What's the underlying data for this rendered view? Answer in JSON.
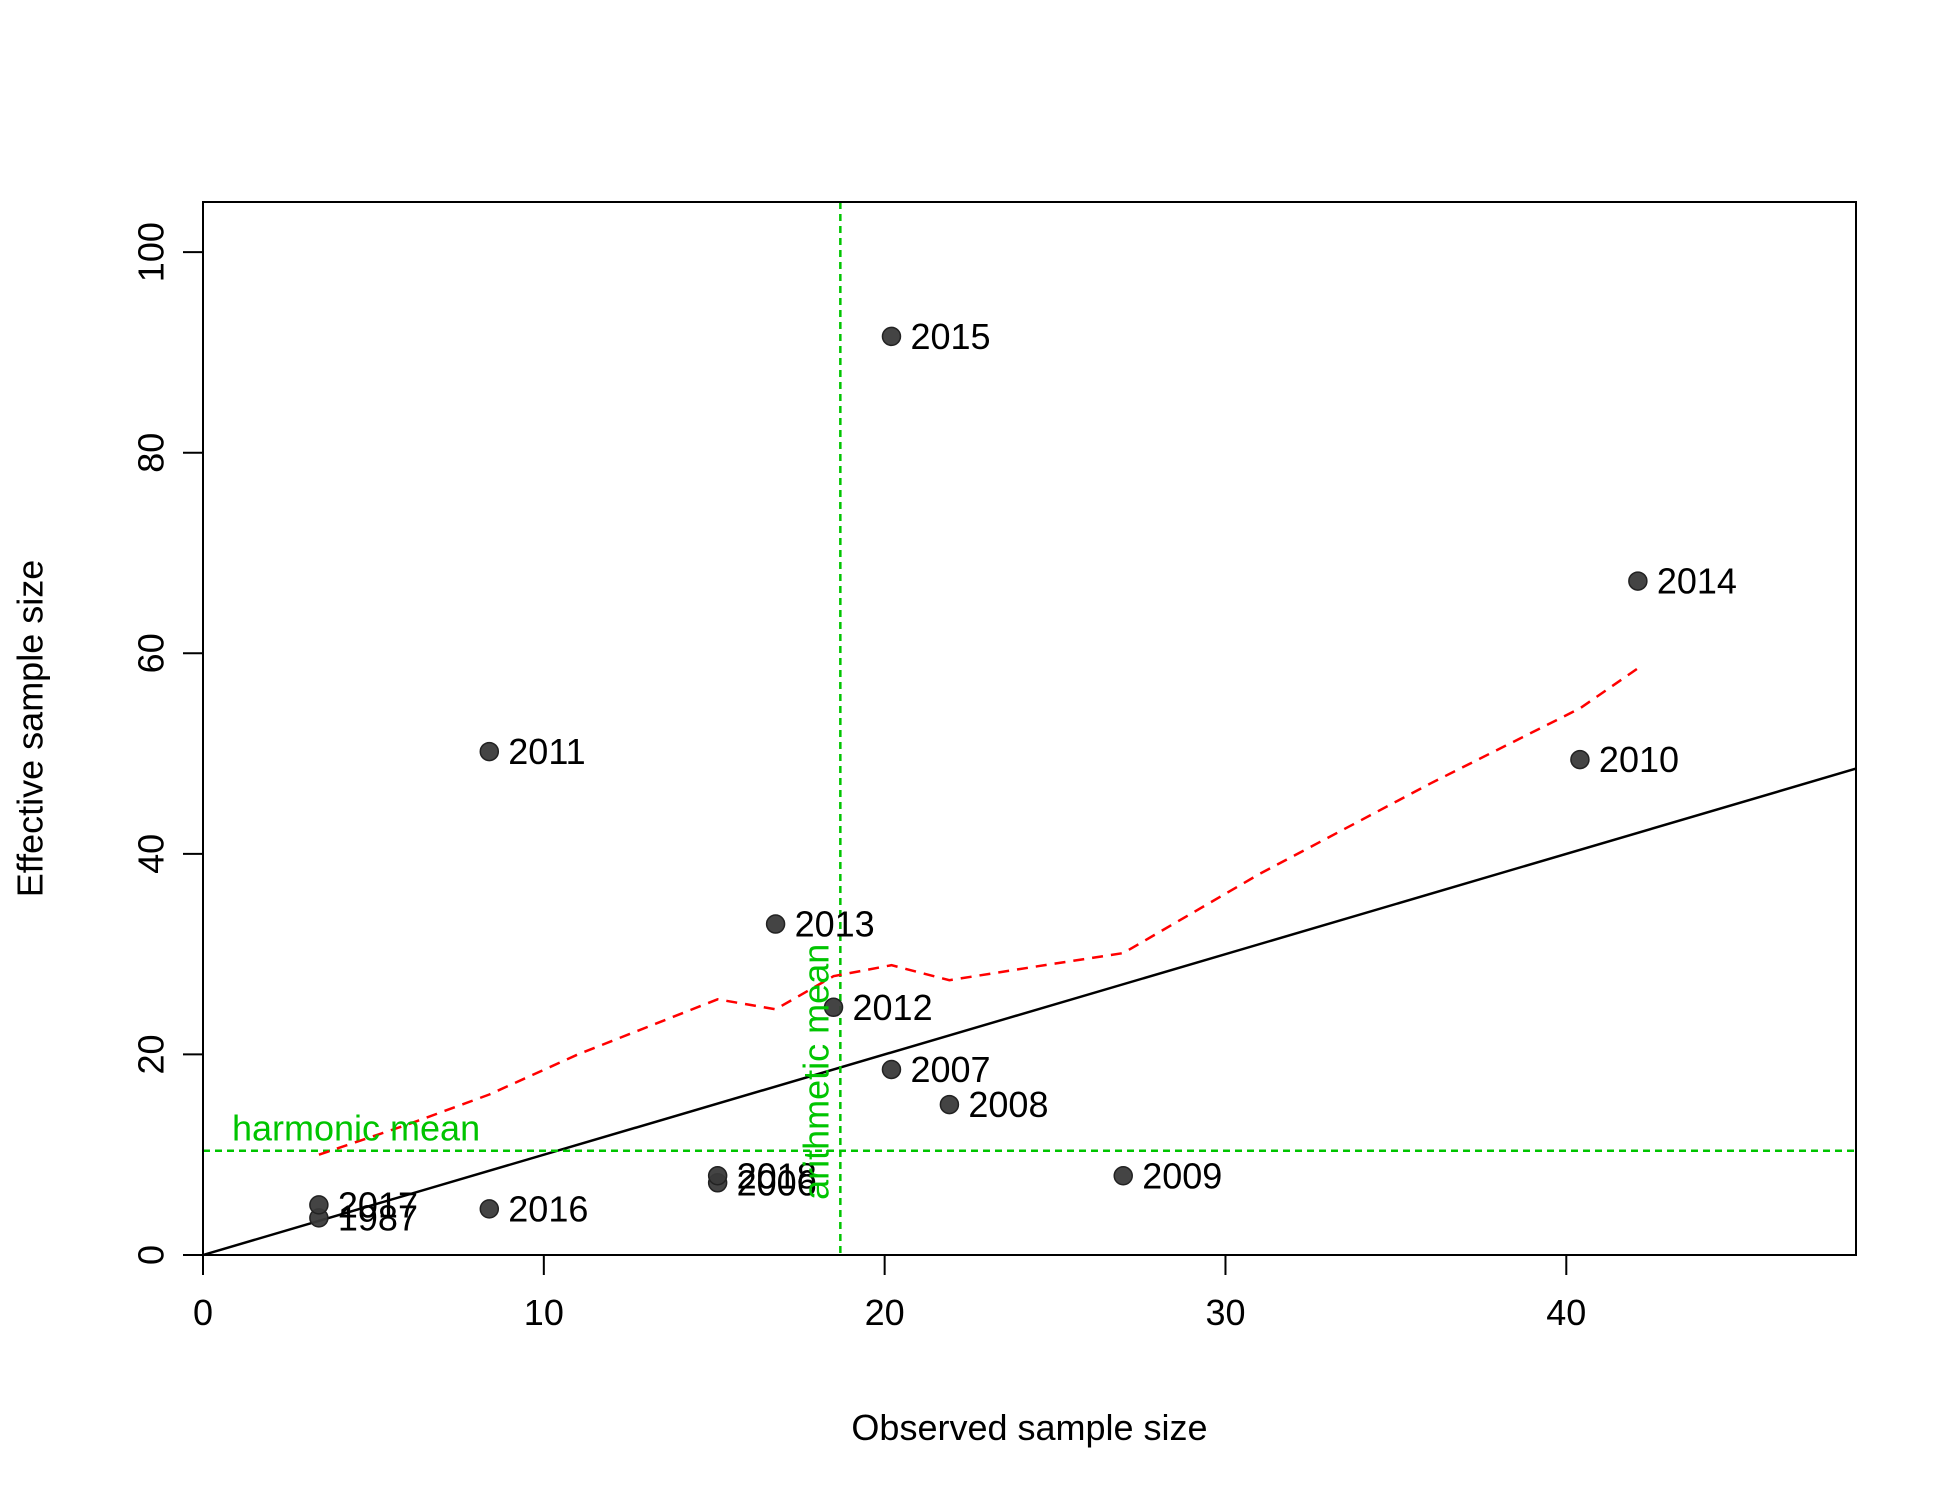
{
  "chart_data": {
    "type": "scatter",
    "title": "",
    "xlabel": "Observed sample size",
    "ylabel": "Effective sample size",
    "xlim": [
      0,
      48.5
    ],
    "ylim": [
      0,
      105
    ],
    "x_ticks": [
      0,
      10,
      20,
      30,
      40
    ],
    "y_ticks": [
      0,
      20,
      40,
      60,
      80,
      100
    ],
    "grid": false,
    "points": [
      {
        "label": "1987",
        "x": 3.4,
        "y": 3.7
      },
      {
        "label": "2006",
        "x": 15.1,
        "y": 7.2
      },
      {
        "label": "2007",
        "x": 20.2,
        "y": 18.5
      },
      {
        "label": "2008",
        "x": 21.9,
        "y": 15.0
      },
      {
        "label": "2009",
        "x": 27.0,
        "y": 7.9
      },
      {
        "label": "2010",
        "x": 40.4,
        "y": 49.4
      },
      {
        "label": "2011",
        "x": 8.4,
        "y": 50.2
      },
      {
        "label": "2012",
        "x": 18.5,
        "y": 24.7
      },
      {
        "label": "2013",
        "x": 16.8,
        "y": 33.0
      },
      {
        "label": "2014",
        "x": 42.1,
        "y": 67.2
      },
      {
        "label": "2015",
        "x": 20.2,
        "y": 91.6
      },
      {
        "label": "2016",
        "x": 8.4,
        "y": 4.6
      },
      {
        "label": "2017",
        "x": 3.4,
        "y": 5.0
      },
      {
        "label": "2018",
        "x": 15.1,
        "y": 7.9
      }
    ],
    "reference_lines": {
      "identity": {
        "from": [
          0,
          0
        ],
        "to": [
          48.5,
          48.5
        ],
        "color": "#000000"
      },
      "harmonic_mean": {
        "label": "harmonic mean",
        "y": 10.4,
        "color": "#00c400"
      },
      "arithmetic_mean": {
        "label": "arithmetic mean",
        "x": 18.7,
        "color": "#00c400"
      }
    },
    "smoother": {
      "color": "#ff0000",
      "x": [
        3.4,
        6.0,
        8.4,
        11.0,
        15.1,
        16.8,
        18.5,
        20.2,
        21.9,
        24.5,
        27.0,
        31.0,
        36.0,
        40.4,
        42.1
      ],
      "y": [
        10.0,
        13.0,
        16.0,
        20.0,
        25.5,
        24.5,
        27.8,
        28.9,
        27.4,
        28.8,
        30.1,
        38.0,
        47.0,
        54.5,
        58.5
      ]
    },
    "point_color": "#3a3a3a"
  }
}
